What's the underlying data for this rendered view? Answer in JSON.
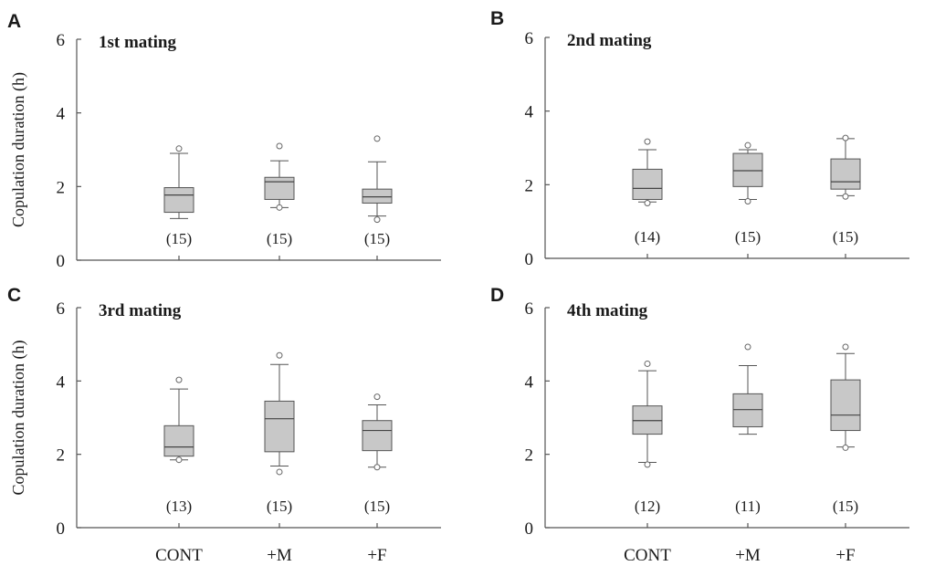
{
  "chart_data": {
    "type": "box",
    "ylabel": "Copulation duration (h)",
    "categories": [
      "CONT",
      "+M",
      "+F"
    ],
    "ylim": [
      0,
      6
    ],
    "yticks": [
      "0",
      "2",
      "4",
      "6"
    ],
    "panels": [
      {
        "letter": "A",
        "title": "1st mating",
        "groups": [
          {
            "category": "CONT",
            "whisker_low": 1.13,
            "q1": 1.3,
            "median": 1.77,
            "q3": 1.97,
            "whisker_high": 2.9,
            "outliers": [
              3.03
            ],
            "n": "(15)"
          },
          {
            "category": "+M",
            "whisker_low": 1.43,
            "q1": 1.65,
            "median": 2.13,
            "q3": 2.25,
            "whisker_high": 2.7,
            "outliers": [
              3.1,
              1.43
            ],
            "n": "(15)"
          },
          {
            "category": "+F",
            "whisker_low": 1.2,
            "q1": 1.55,
            "median": 1.72,
            "q3": 1.93,
            "whisker_high": 2.67,
            "outliers": [
              3.3,
              1.1
            ],
            "n": "(15)"
          }
        ]
      },
      {
        "letter": "B",
        "title": "2nd mating",
        "groups": [
          {
            "category": "CONT",
            "whisker_low": 1.53,
            "q1": 1.6,
            "median": 1.9,
            "q3": 2.42,
            "whisker_high": 2.95,
            "outliers": [
              3.17,
              1.5
            ],
            "n": "(14)"
          },
          {
            "category": "+M",
            "whisker_low": 1.6,
            "q1": 1.95,
            "median": 2.38,
            "q3": 2.85,
            "whisker_high": 2.95,
            "outliers": [
              3.07,
              1.55
            ],
            "n": "(15)"
          },
          {
            "category": "+F",
            "whisker_low": 1.7,
            "q1": 1.88,
            "median": 2.08,
            "q3": 2.7,
            "whisker_high": 3.25,
            "outliers": [
              3.27,
              1.68
            ],
            "n": "(15)"
          }
        ]
      },
      {
        "letter": "C",
        "title": "3rd mating",
        "groups": [
          {
            "category": "CONT",
            "whisker_low": 1.85,
            "q1": 1.95,
            "median": 2.2,
            "q3": 2.78,
            "whisker_high": 3.78,
            "outliers": [
              4.03,
              1.85
            ],
            "n": "(13)"
          },
          {
            "category": "+M",
            "whisker_low": 1.68,
            "q1": 2.07,
            "median": 2.97,
            "q3": 3.45,
            "whisker_high": 4.45,
            "outliers": [
              4.7,
              1.52
            ],
            "n": "(15)"
          },
          {
            "category": "+F",
            "whisker_low": 1.65,
            "q1": 2.1,
            "median": 2.65,
            "q3": 2.92,
            "whisker_high": 3.35,
            "outliers": [
              3.57,
              1.65
            ],
            "n": "(15)"
          }
        ]
      },
      {
        "letter": "D",
        "title": "4th mating",
        "groups": [
          {
            "category": "CONT",
            "whisker_low": 1.78,
            "q1": 2.55,
            "median": 2.92,
            "q3": 3.32,
            "whisker_high": 4.28,
            "outliers": [
              4.47,
              1.72
            ],
            "n": "(12)"
          },
          {
            "category": "+M",
            "whisker_low": 2.55,
            "q1": 2.75,
            "median": 3.22,
            "q3": 3.65,
            "whisker_high": 4.42,
            "outliers": [
              4.93
            ],
            "n": "(11)"
          },
          {
            "category": "+F",
            "whisker_low": 2.2,
            "q1": 2.65,
            "median": 3.07,
            "q3": 4.03,
            "whisker_high": 4.75,
            "outliers": [
              4.93,
              2.18
            ],
            "n": "(15)"
          }
        ]
      }
    ]
  }
}
